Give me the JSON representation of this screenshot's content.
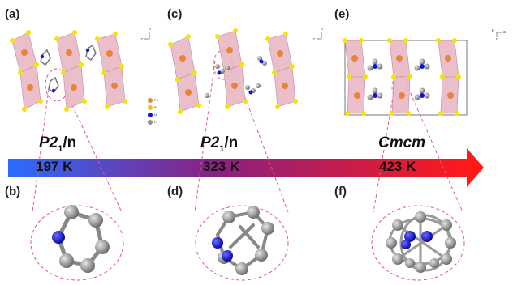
{
  "panels": {
    "a": "(a)",
    "b": "(b)",
    "c": "(c)",
    "d": "(d)",
    "e": "(e)",
    "f": "(f)"
  },
  "space_groups": [
    {
      "prefix": "P2",
      "sub": "1",
      "suffix": "/n"
    },
    {
      "prefix": "P2",
      "sub": "1",
      "suffix": "/n"
    },
    {
      "name": "Cmcm"
    }
  ],
  "temperatures": [
    "197 K",
    "323 K",
    "423 K"
  ],
  "legend": [
    "Pb",
    "Br",
    "N",
    "C"
  ],
  "axes": {
    "a_panel": [
      "b",
      "c"
    ],
    "c_panel": [
      "b",
      "c"
    ],
    "e_panel": [
      "b",
      "a",
      "c"
    ]
  },
  "colors": {
    "arrow_start": "#2b6cff",
    "arrow_mid": "#8a2080",
    "arrow_end": "#ff1a1a",
    "octahedron": "#e9b9c4",
    "pb": "#e8833a",
    "br": "#f2e600",
    "n": "#1010e0",
    "c": "#909090",
    "dash": "#e0569a"
  }
}
